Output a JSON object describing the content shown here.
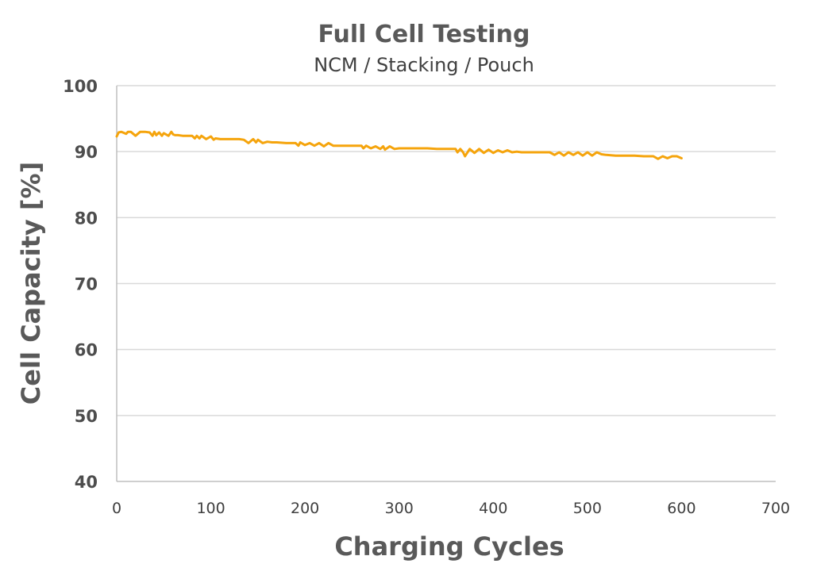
{
  "chart_data": {
    "type": "line",
    "title": "Full Cell Testing",
    "subtitle": "NCM / Stacking / Pouch",
    "xlabel": "Charging Cycles",
    "ylabel": "Cell Capacity [%]",
    "xlim": [
      0,
      700
    ],
    "ylim": [
      40,
      100
    ],
    "xticks": [
      0,
      100,
      200,
      300,
      400,
      500,
      600,
      700
    ],
    "yticks": [
      40,
      50,
      60,
      70,
      80,
      90,
      100
    ],
    "grid": true,
    "line_color": "#f5a40c",
    "series": [
      {
        "x": [
          0,
          2,
          5,
          10,
          12,
          15,
          20,
          25,
          30,
          35,
          38,
          40,
          42,
          45,
          48,
          50,
          55,
          58,
          60,
          62,
          65,
          70,
          75,
          80,
          83,
          85,
          88,
          90,
          95,
          100,
          103,
          105,
          110,
          120,
          130,
          135,
          140,
          145,
          148,
          150,
          155,
          160,
          165,
          170,
          180,
          190,
          193,
          195,
          200,
          205,
          210,
          215,
          220,
          225,
          230,
          240,
          250,
          260,
          262,
          265,
          270,
          275,
          280,
          283,
          285,
          290,
          295,
          300,
          310,
          320,
          330,
          340,
          350,
          360,
          362,
          365,
          368,
          370,
          375,
          380,
          385,
          390,
          395,
          400,
          405,
          410,
          415,
          420,
          425,
          430,
          440,
          450,
          460,
          465,
          470,
          475,
          480,
          485,
          490,
          495,
          500,
          505,
          510,
          515,
          520,
          530,
          540,
          550,
          560,
          570,
          575,
          580,
          585,
          590,
          595,
          600
        ],
        "y": [
          92.3,
          92.9,
          93.0,
          92.7,
          93.0,
          93.0,
          92.4,
          93.0,
          93.0,
          92.9,
          92.4,
          93.0,
          92.5,
          92.9,
          92.4,
          92.8,
          92.4,
          93.0,
          92.6,
          92.5,
          92.5,
          92.4,
          92.4,
          92.4,
          92.0,
          92.4,
          92.0,
          92.4,
          91.9,
          92.3,
          91.8,
          92.0,
          91.9,
          91.9,
          91.9,
          91.8,
          91.3,
          91.9,
          91.4,
          91.8,
          91.3,
          91.5,
          91.4,
          91.4,
          91.3,
          91.3,
          90.9,
          91.4,
          91.0,
          91.3,
          90.9,
          91.3,
          90.8,
          91.3,
          90.9,
          90.9,
          90.9,
          90.9,
          90.5,
          90.9,
          90.5,
          90.8,
          90.4,
          90.8,
          90.3,
          90.8,
          90.4,
          90.5,
          90.5,
          90.5,
          90.5,
          90.4,
          90.4,
          90.4,
          89.9,
          90.4,
          89.9,
          89.3,
          90.4,
          89.8,
          90.4,
          89.8,
          90.3,
          89.8,
          90.2,
          89.9,
          90.2,
          89.9,
          90.0,
          89.9,
          89.9,
          89.9,
          89.9,
          89.5,
          89.9,
          89.4,
          89.9,
          89.5,
          89.9,
          89.4,
          89.9,
          89.4,
          89.9,
          89.6,
          89.5,
          89.4,
          89.4,
          89.4,
          89.3,
          89.3,
          88.9,
          89.3,
          89.0,
          89.3,
          89.3,
          89.0
        ]
      }
    ]
  }
}
